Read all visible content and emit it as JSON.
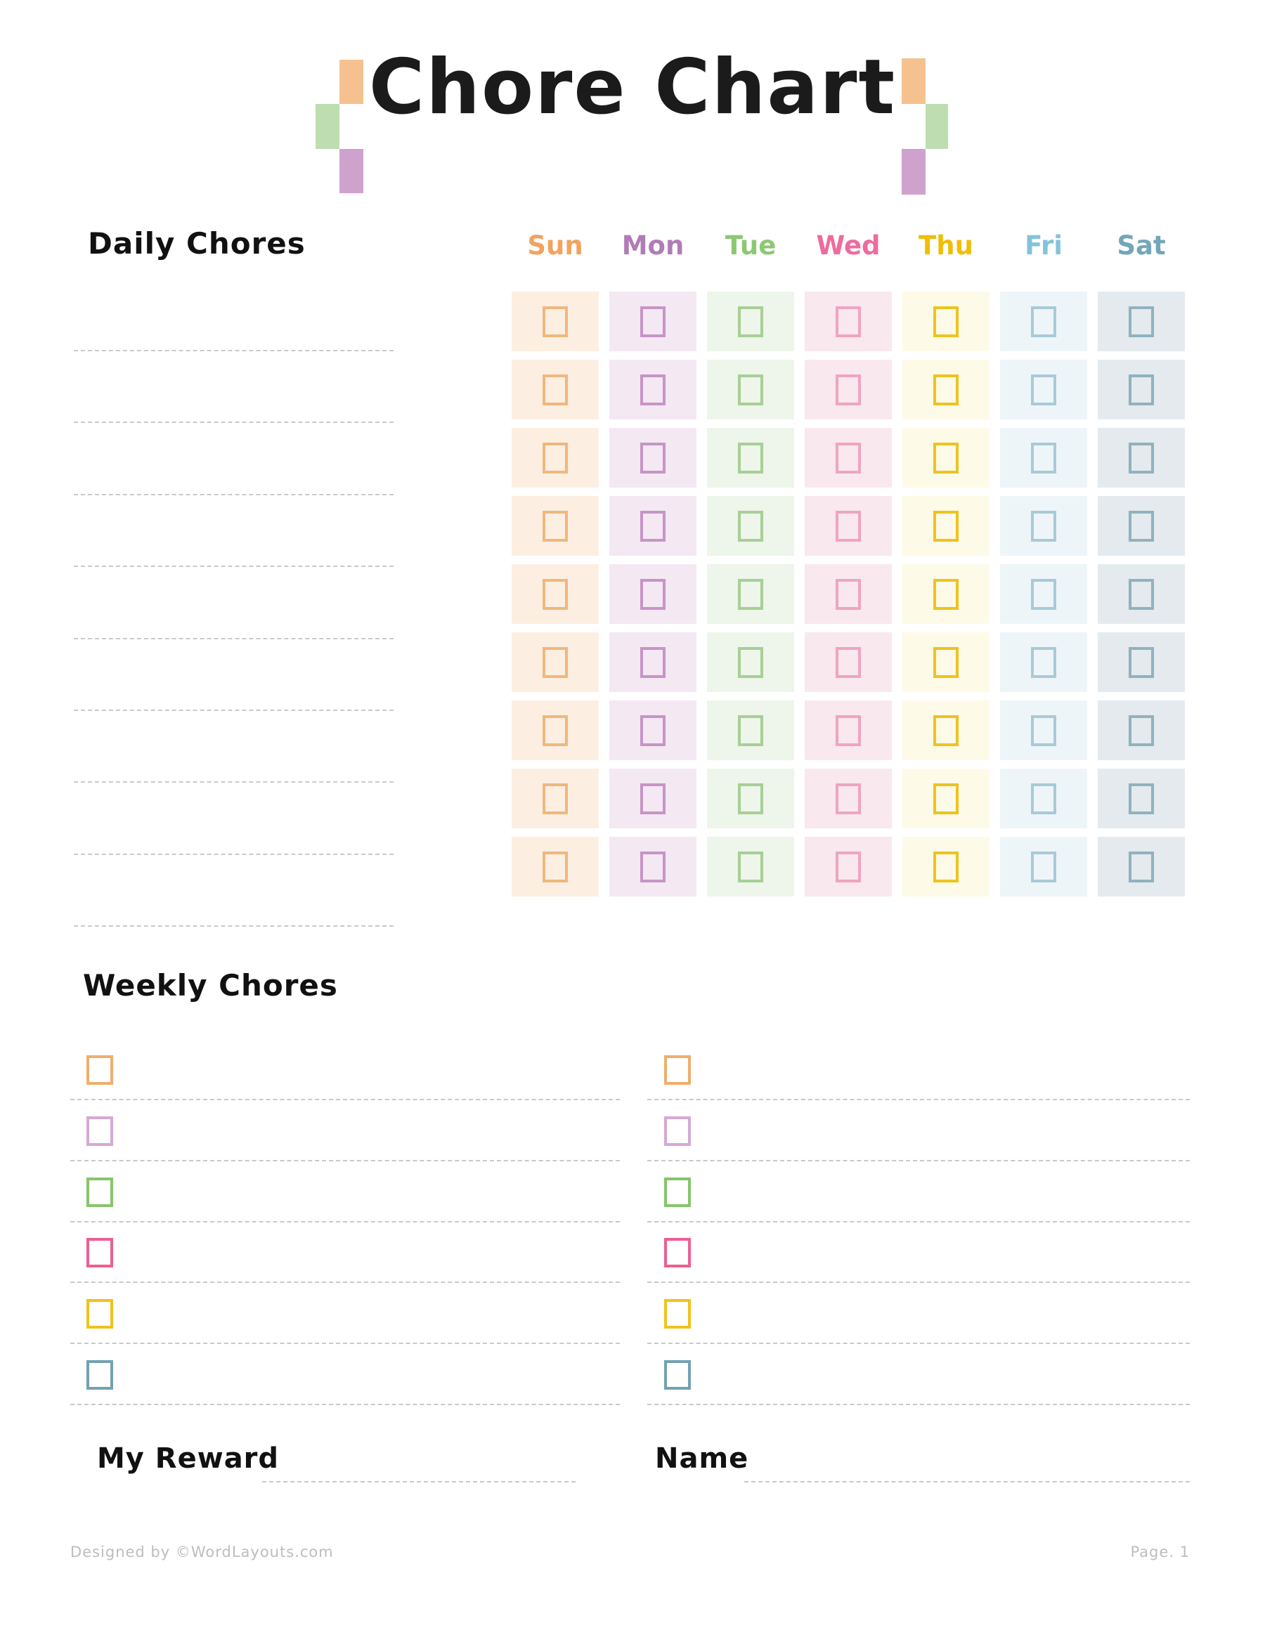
{
  "page": {
    "title": "Chore Chart",
    "footer_credit": "Designed by ©WordLayouts.com",
    "footer_page": "Page. 1"
  },
  "decor": {
    "orange": "#F5C28F",
    "green": "#BEDDB0",
    "purple": "#CFA2CD"
  },
  "daily": {
    "heading": "Daily Chores",
    "row_count": 9,
    "days": [
      {
        "label": "Sun",
        "label_color": "#F1A35F",
        "cell_bg": "#FCEFE2",
        "box_border": "#EFB87D"
      },
      {
        "label": "Mon",
        "label_color": "#B07CB7",
        "cell_bg": "#F4E8F3",
        "box_border": "#C794C6"
      },
      {
        "label": "Tue",
        "label_color": "#8CC873",
        "cell_bg": "#EEF5EA",
        "box_border": "#A7CF96"
      },
      {
        "label": "Wed",
        "label_color": "#EE6C9D",
        "cell_bg": "#FAE8EF",
        "box_border": "#EFA4C1"
      },
      {
        "label": "Thu",
        "label_color": "#F1BE07",
        "cell_bg": "#FDFAE8",
        "box_border": "#EEC31E"
      },
      {
        "label": "Fri",
        "label_color": "#83C3DA",
        "cell_bg": "#EEF5F8",
        "box_border": "#A8CAD7"
      },
      {
        "label": "Sat",
        "label_color": "#73A6B8",
        "cell_bg": "#E4EAEE",
        "box_border": "#91B2BE"
      }
    ]
  },
  "weekly": {
    "heading": "Weekly Chores",
    "row_count": 6,
    "box_colors": [
      "#EFAE6D",
      "#D6A8D4",
      "#86C56A",
      "#ED5E93",
      "#F1C21A",
      "#72A2B3"
    ]
  },
  "reward": {
    "label": "My Reward"
  },
  "name": {
    "label": "Name"
  }
}
